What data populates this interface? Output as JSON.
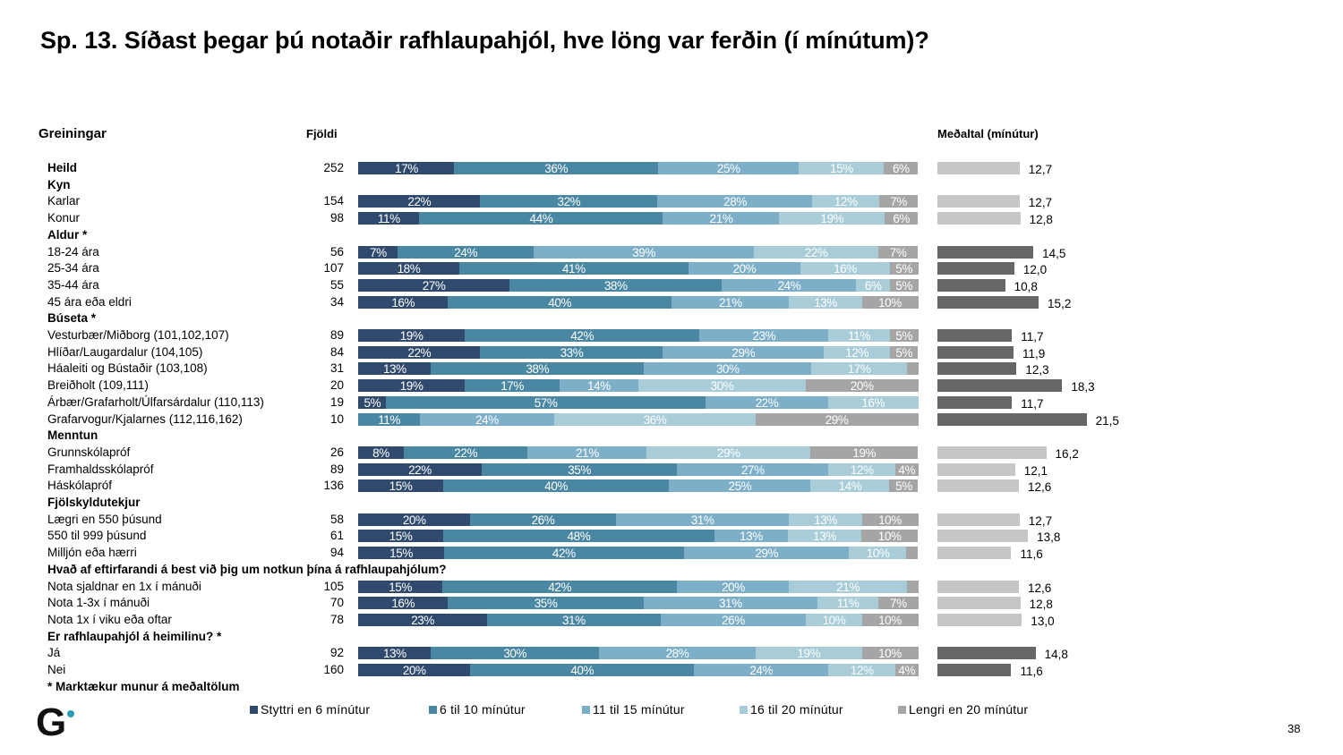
{
  "title": "Sp. 13. Síðast þegar þú notaðir rafhlaupahjól, hve löng var ferðin (í mínútum)?",
  "headers": {
    "breakdown": "Greiningar",
    "count": "Fjöldi",
    "mean": "Meðaltal (mínútur)"
  },
  "legend": [
    {
      "label": "Styttri en 6 mínútur",
      "color": "#2f4a6c"
    },
    {
      "label": "6 til 10 mínútur",
      "color": "#4a87a3"
    },
    {
      "label": "11 til 15 mínútur",
      "color": "#7db0c8"
    },
    {
      "label": "16 til 20 mínútur",
      "color": "#a9cdd8"
    },
    {
      "label": "Lengri en 20 mínútur",
      "color": "#a5a5a5"
    }
  ],
  "footnote": "* Marktækur munur á meðaltölum",
  "page_number": "38",
  "logo": {
    "letter": "G",
    "dot_color": "#2a9bb5"
  },
  "chart_data": {
    "type": "bar",
    "orientation": "horizontal",
    "stacked": "100%",
    "title": "Sp. 13. Síðast þegar þú notaðir rafhlaupahjól, hve löng var ferðin (í mínútum)?",
    "xlabel": "",
    "ylabel": "Greiningar",
    "series_names": [
      "Styttri en 6 mínútur",
      "6 til 10 mínútur",
      "11 til 15 mínútur",
      "16 til 20 mínútur",
      "Lengri en 20 mínútur"
    ],
    "series_colors": [
      "#2f4a6c",
      "#4a87a3",
      "#7db0c8",
      "#a9cdd8",
      "#a5a5a5"
    ],
    "legend_position": "bottom",
    "mean_chart": {
      "type": "bar",
      "title": "Meðaltal (mínútur)",
      "unit": "mínútur",
      "color_significant": "#666666",
      "color_default": "#c6c6c6"
    },
    "rows": [
      {
        "label": "Heild",
        "bold": true,
        "n": "252",
        "values": [
          17,
          36,
          25,
          15,
          6
        ],
        "labels": [
          "17%",
          "36%",
          "25%",
          "15%",
          "6%"
        ],
        "mean": 12.7,
        "mean_label": "12,7",
        "significant": false
      },
      {
        "label": "Kyn",
        "group": true
      },
      {
        "label": "Karlar",
        "n": "154",
        "values": [
          22,
          32,
          28,
          12,
          7
        ],
        "labels": [
          "22%",
          "32%",
          "28%",
          "12%",
          "7%"
        ],
        "mean": 12.7,
        "mean_label": "12,7",
        "significant": false
      },
      {
        "label": "Konur",
        "n": "98",
        "values": [
          11,
          44,
          21,
          19,
          6
        ],
        "labels": [
          "11%",
          "44%",
          "21%",
          "19%",
          "6%"
        ],
        "mean": 12.8,
        "mean_label": "12,8",
        "significant": false
      },
      {
        "label": "Aldur *",
        "group": true
      },
      {
        "label": "18-24 ára",
        "n": "56",
        "values": [
          7,
          24,
          39,
          22,
          7
        ],
        "labels": [
          "7%",
          "24%",
          "39%",
          "22%",
          "7%"
        ],
        "mean": 14.5,
        "mean_label": "14,5",
        "significant": true
      },
      {
        "label": "25-34 ára",
        "n": "107",
        "values": [
          18,
          41,
          20,
          16,
          5
        ],
        "labels": [
          "18%",
          "41%",
          "20%",
          "16%",
          "5%"
        ],
        "mean": 12.0,
        "mean_label": "12,0",
        "significant": true
      },
      {
        "label": "35-44 ára",
        "n": "55",
        "values": [
          27,
          38,
          24,
          6,
          5
        ],
        "labels": [
          "27%",
          "38%",
          "24%",
          "6%",
          "5%"
        ],
        "mean": 10.8,
        "mean_label": "10,8",
        "significant": true
      },
      {
        "label": "45 ára eða eldri",
        "n": "34",
        "values": [
          16,
          40,
          21,
          13,
          10
        ],
        "labels": [
          "16%",
          "40%",
          "21%",
          "13%",
          "10%"
        ],
        "mean": 15.2,
        "mean_label": "15,2",
        "significant": true
      },
      {
        "label": "Búseta *",
        "group": true
      },
      {
        "label": "Vesturbær/Miðborg (101,102,107)",
        "n": "89",
        "values": [
          19,
          42,
          23,
          11,
          5
        ],
        "labels": [
          "19%",
          "42%",
          "23%",
          "11%",
          "5%"
        ],
        "mean": 11.7,
        "mean_label": "11,7",
        "significant": true
      },
      {
        "label": "Hlíðar/Laugardalur (104,105)",
        "n": "84",
        "values": [
          22,
          33,
          29,
          12,
          5
        ],
        "labels": [
          "22%",
          "33%",
          "29%",
          "12%",
          "5%"
        ],
        "mean": 11.9,
        "mean_label": "11,9",
        "significant": true
      },
      {
        "label": "Háaleiti og Bústaðir (103,108)",
        "n": "31",
        "values": [
          13,
          38,
          30,
          17,
          2
        ],
        "labels": [
          "13%",
          "38%",
          "30%",
          "17%",
          ""
        ],
        "mean": 12.3,
        "mean_label": "12,3",
        "significant": true
      },
      {
        "label": "Breiðholt (109,111)",
        "n": "20",
        "values": [
          19,
          17,
          14,
          30,
          20
        ],
        "labels": [
          "19%",
          "17%",
          "14%",
          "30%",
          "20%"
        ],
        "mean": 18.3,
        "mean_label": "18,3",
        "significant": true
      },
      {
        "label": "Árbær/Grafarholt/Úlfarsárdalur (110,113)",
        "n": "19",
        "values": [
          5,
          57,
          22,
          16,
          0
        ],
        "labels": [
          "5%",
          "57%",
          "22%",
          "16%",
          ""
        ],
        "mean": 11.7,
        "mean_label": "11,7",
        "significant": true
      },
      {
        "label": "Grafarvogur/Kjalarnes (112,116,162)",
        "n": "10",
        "values": [
          0,
          11,
          24,
          36,
          29
        ],
        "labels": [
          "",
          "11%",
          "24%",
          "36%",
          "29%"
        ],
        "mean": 21.5,
        "mean_label": "21,5",
        "significant": true
      },
      {
        "label": "Menntun",
        "group": true
      },
      {
        "label": "Grunnskólapróf",
        "n": "26",
        "values": [
          8,
          22,
          21,
          29,
          19
        ],
        "labels": [
          "8%",
          "22%",
          "21%",
          "29%",
          "19%"
        ],
        "mean": 16.2,
        "mean_label": "16,2",
        "significant": false
      },
      {
        "label": "Framhaldsskólapróf",
        "n": "89",
        "values": [
          22,
          35,
          27,
          12,
          4
        ],
        "labels": [
          "22%",
          "35%",
          "27%",
          "12%",
          "4%"
        ],
        "mean": 12.1,
        "mean_label": "12,1",
        "significant": false
      },
      {
        "label": "Háskólapróf",
        "n": "136",
        "values": [
          15,
          40,
          25,
          14,
          5
        ],
        "labels": [
          "15%",
          "40%",
          "25%",
          "14%",
          "5%"
        ],
        "mean": 12.6,
        "mean_label": "12,6",
        "significant": false
      },
      {
        "label": "Fjölskyldutekjur",
        "group": true
      },
      {
        "label": "Lægri en 550 þúsund",
        "n": "58",
        "values": [
          20,
          26,
          31,
          13,
          10
        ],
        "labels": [
          "20%",
          "26%",
          "31%",
          "13%",
          "10%"
        ],
        "mean": 12.7,
        "mean_label": "12,7",
        "significant": false
      },
      {
        "label": "550 til 999 þúsund",
        "n": "61",
        "values": [
          15,
          48,
          13,
          13,
          10
        ],
        "labels": [
          "15%",
          "48%",
          "13%",
          "13%",
          "10%"
        ],
        "mean": 13.8,
        "mean_label": "13,8",
        "significant": false
      },
      {
        "label": "Milljón eða hærri",
        "n": "94",
        "values": [
          15,
          42,
          29,
          10,
          2
        ],
        "labels": [
          "15%",
          "42%",
          "29%",
          "10%",
          ""
        ],
        "mean": 11.6,
        "mean_label": "11,6",
        "significant": false
      },
      {
        "label": "Hvað af eftirfarandi á best við þig um notkun þína á rafhlaupahjólum?",
        "group": true
      },
      {
        "label": "Nota sjaldnar en 1x í mánuði",
        "n": "105",
        "values": [
          15,
          42,
          20,
          21,
          2
        ],
        "labels": [
          "15%",
          "42%",
          "20%",
          "21%",
          ""
        ],
        "mean": 12.6,
        "mean_label": "12,6",
        "significant": false
      },
      {
        "label": "Nota 1-3x í mánuði",
        "n": "70",
        "values": [
          16,
          35,
          31,
          11,
          7
        ],
        "labels": [
          "16%",
          "35%",
          "31%",
          "11%",
          "7%"
        ],
        "mean": 12.8,
        "mean_label": "12,8",
        "significant": false
      },
      {
        "label": "Nota 1x í viku eða oftar",
        "n": "78",
        "values": [
          23,
          31,
          26,
          10,
          10
        ],
        "labels": [
          "23%",
          "31%",
          "26%",
          "10%",
          "10%"
        ],
        "mean": 13.0,
        "mean_label": "13,0",
        "significant": false
      },
      {
        "label": "Er rafhlaupahjól á heimilinu? *",
        "group": true
      },
      {
        "label": "Já",
        "n": "92",
        "values": [
          13,
          30,
          28,
          19,
          10
        ],
        "labels": [
          "13%",
          "30%",
          "28%",
          "19%",
          "10%"
        ],
        "mean": 14.8,
        "mean_label": "14,8",
        "significant": true
      },
      {
        "label": "Nei",
        "n": "160",
        "values": [
          20,
          40,
          24,
          12,
          4
        ],
        "labels": [
          "20%",
          "40%",
          "24%",
          "12%",
          "4%"
        ],
        "mean": 11.6,
        "mean_label": "11,6",
        "significant": true
      }
    ]
  }
}
